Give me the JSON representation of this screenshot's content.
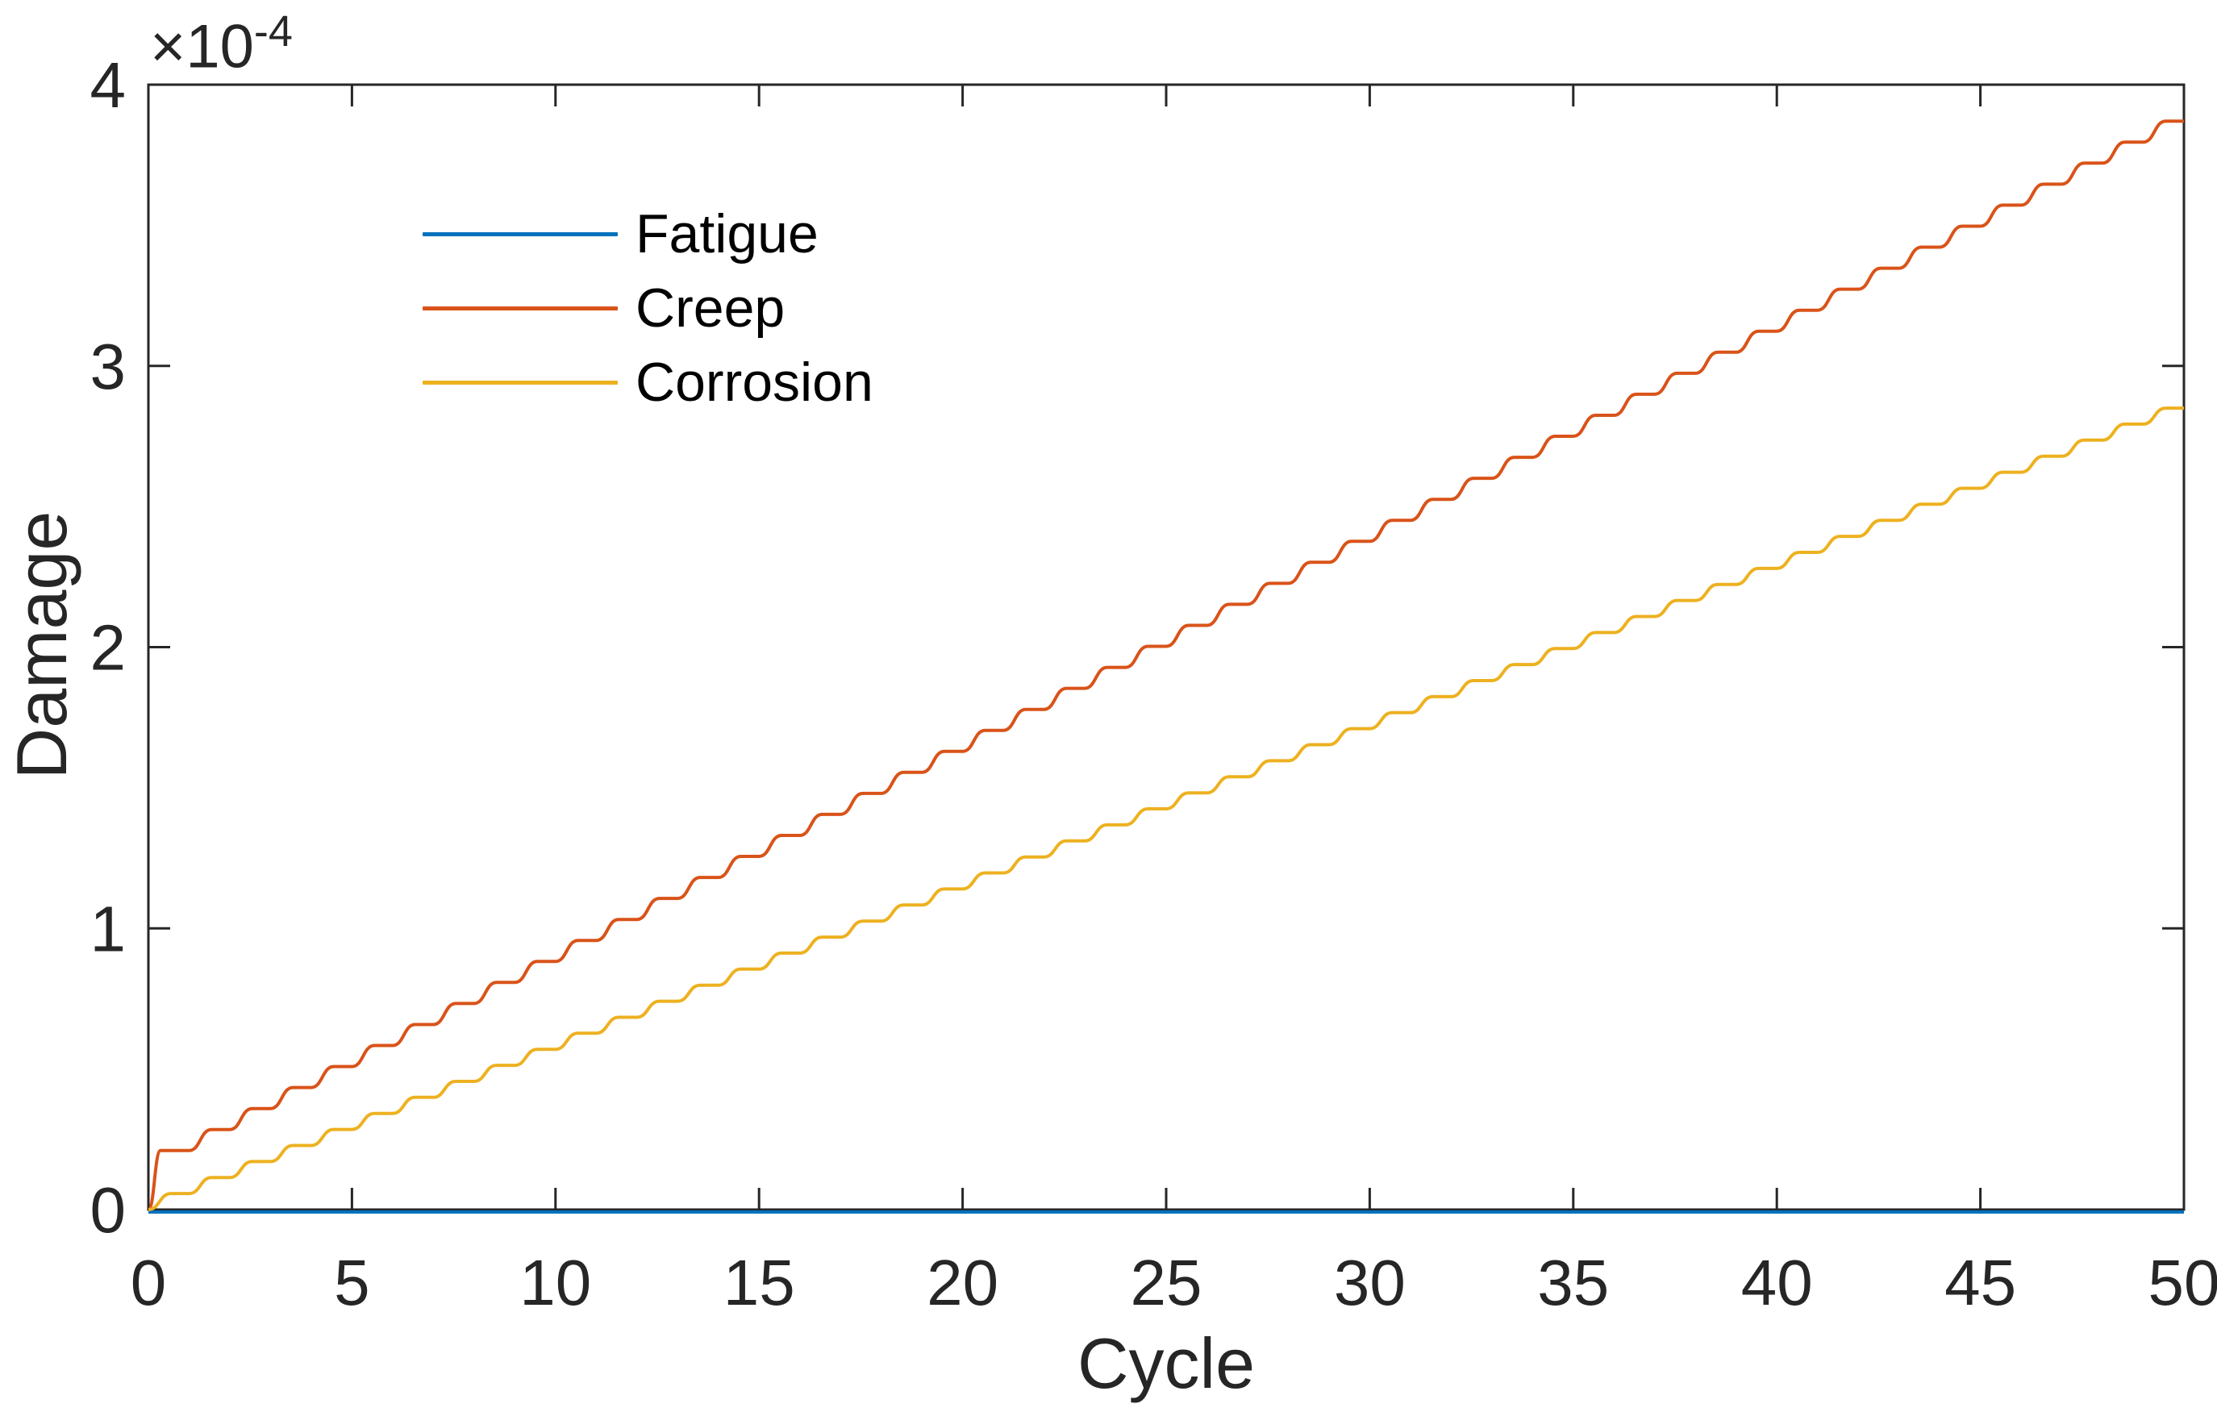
{
  "figure": {
    "background": "#ffffff",
    "axis_color": "#262626",
    "tick_label_color": "#262626",
    "text_color": "#262626"
  },
  "chart_data": {
    "type": "line",
    "title": "",
    "xlabel": "Cycle",
    "ylabel": "Damage",
    "scale_prefix": "×10",
    "scale_exponent": "-4",
    "value_scale": "1e-4",
    "xlim": [
      0,
      50
    ],
    "ylim": [
      0,
      4
    ],
    "xticks": [
      0,
      5,
      10,
      15,
      20,
      25,
      30,
      35,
      40,
      45,
      50
    ],
    "yticks": [
      0,
      1,
      2,
      3,
      4
    ],
    "grid": false,
    "legend_position": "upper-left-inside",
    "legend_box": false,
    "line_style": "stepped-ramp",
    "step_ramp_fraction": 0.55,
    "x": [
      0,
      1,
      2,
      3,
      4,
      5,
      6,
      7,
      8,
      9,
      10,
      11,
      12,
      13,
      14,
      15,
      16,
      17,
      18,
      19,
      20,
      21,
      22,
      23,
      24,
      25,
      26,
      27,
      28,
      29,
      30,
      31,
      32,
      33,
      34,
      35,
      36,
      37,
      38,
      39,
      40,
      41,
      42,
      43,
      44,
      45,
      46,
      47,
      48,
      49,
      50
    ],
    "series": [
      {
        "name": "Fatigue",
        "color": "#0072BD",
        "first_ramp_fraction": 0.55,
        "values": [
          0,
          0,
          0,
          0,
          0,
          0,
          0,
          0,
          0,
          0,
          0,
          0,
          0,
          0,
          0,
          0,
          0,
          0,
          0,
          0,
          0,
          0,
          0,
          0,
          0,
          0,
          0,
          0,
          0,
          0,
          0,
          0,
          0,
          0,
          0,
          0,
          0,
          0,
          0,
          0,
          0,
          0,
          0,
          0,
          0,
          0,
          0,
          0,
          0,
          0,
          0
        ]
      },
      {
        "name": "Creep",
        "color": "#D95319",
        "first_ramp_fraction": 0.3,
        "values": [
          0,
          0.21,
          0.2847,
          0.3594,
          0.4341,
          0.5088,
          0.5835,
          0.6582,
          0.7329,
          0.8076,
          0.8823,
          0.957,
          1.0317,
          1.1064,
          1.1811,
          1.2558,
          1.3305,
          1.4052,
          1.4799,
          1.5546,
          1.6293,
          1.704,
          1.7787,
          1.8534,
          1.9281,
          2.0028,
          2.0775,
          2.1522,
          2.2269,
          2.3016,
          2.3763,
          2.451,
          2.5257,
          2.6004,
          2.6751,
          2.7498,
          2.8245,
          2.8992,
          2.9739,
          3.0486,
          3.1233,
          3.198,
          3.2727,
          3.3474,
          3.4221,
          3.4968,
          3.5715,
          3.6462,
          3.7209,
          3.7956,
          3.8703
        ]
      },
      {
        "name": "Corrosion",
        "color": "#EDB120",
        "first_ramp_fraction": 0.55,
        "values": [
          0,
          0.057,
          0.114,
          0.171,
          0.228,
          0.285,
          0.342,
          0.399,
          0.456,
          0.513,
          0.57,
          0.627,
          0.684,
          0.741,
          0.798,
          0.855,
          0.912,
          0.969,
          1.026,
          1.083,
          1.14,
          1.197,
          1.254,
          1.311,
          1.368,
          1.425,
          1.482,
          1.539,
          1.596,
          1.653,
          1.71,
          1.767,
          1.824,
          1.881,
          1.938,
          1.995,
          2.052,
          2.109,
          2.166,
          2.223,
          2.28,
          2.337,
          2.394,
          2.451,
          2.508,
          2.565,
          2.622,
          2.679,
          2.736,
          2.793,
          2.85
        ]
      }
    ]
  }
}
